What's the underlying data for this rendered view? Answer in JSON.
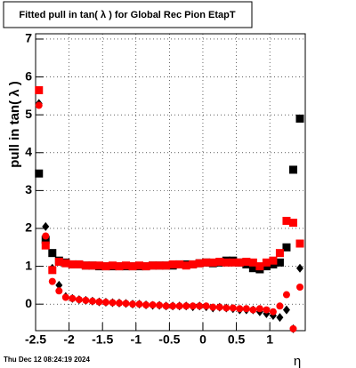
{
  "chart_data": {
    "type": "scatter",
    "title": "Fitted pull in tan( λ ) for Global Rec Pion EtapT",
    "y_label": "pull in tan( λ )",
    "x_label": "η",
    "timestamp": "Thu Dec 12 08:24:19 2024",
    "xlim": [
      -2.5,
      1.53
    ],
    "ylim": [
      -0.7,
      7.14
    ],
    "xticks": [
      -2.5,
      -2,
      -1.5,
      -1,
      -0.5,
      0,
      0.5,
      1
    ],
    "yticks": [
      0,
      1,
      2,
      3,
      4,
      5,
      6,
      7
    ],
    "grid": true,
    "x": [
      -2.45,
      -2.35,
      -2.25,
      -2.15,
      -2.05,
      -1.95,
      -1.85,
      -1.75,
      -1.65,
      -1.55,
      -1.45,
      -1.35,
      -1.25,
      -1.15,
      -1.05,
      -0.95,
      -0.85,
      -0.75,
      -0.65,
      -0.55,
      -0.45,
      -0.35,
      -0.25,
      -0.15,
      -0.05,
      0.05,
      0.15,
      0.25,
      0.35,
      0.45,
      0.55,
      0.65,
      0.75,
      0.85,
      0.95,
      1.05,
      1.15,
      1.25,
      1.35,
      1.45
    ],
    "series": [
      {
        "color": "#000000",
        "marker": "square",
        "values": [
          3.45,
          1.7,
          1.35,
          1.15,
          1.1,
          1.05,
          1.05,
          1.02,
          1.02,
          1.0,
          1.0,
          1.0,
          1.0,
          1.0,
          1.0,
          1.0,
          1.0,
          1.02,
          1.02,
          1.02,
          1.02,
          1.05,
          1.05,
          1.05,
          1.08,
          1.1,
          1.08,
          1.1,
          1.15,
          1.15,
          1.1,
          1.05,
          0.95,
          0.92,
          1.0,
          1.05,
          1.1,
          1.5,
          3.55,
          4.9
        ]
      },
      {
        "color": "#000000",
        "marker": "diamond",
        "values": [
          5.3,
          2.05,
          0.95,
          0.5,
          0.2,
          0.15,
          0.12,
          0.1,
          0.08,
          0.06,
          0.05,
          0.04,
          0.03,
          0.02,
          0.0,
          0.0,
          -0.02,
          -0.03,
          -0.03,
          -0.05,
          -0.05,
          -0.05,
          -0.05,
          -0.07,
          -0.05,
          -0.07,
          -0.1,
          -0.08,
          -0.1,
          -0.12,
          -0.15,
          -0.15,
          -0.15,
          -0.2,
          -0.25,
          -0.3,
          -0.35,
          -0.15,
          -0.65,
          0.95
        ]
      },
      {
        "color": "#ff0000",
        "marker": "square",
        "values": [
          5.65,
          1.55,
          0.9,
          1.12,
          1.08,
          1.05,
          1.05,
          1.02,
          1.02,
          1.02,
          1.0,
          1.02,
          1.0,
          1.02,
          1.0,
          1.02,
          1.0,
          1.02,
          1.02,
          1.02,
          1.05,
          1.05,
          1.02,
          1.05,
          1.08,
          1.1,
          1.1,
          1.12,
          1.1,
          1.1,
          1.1,
          1.12,
          1.1,
          1.0,
          1.1,
          1.15,
          1.35,
          2.2,
          2.15,
          1.6
        ]
      },
      {
        "color": "#ff0000",
        "marker": "circle",
        "values": [
          5.25,
          1.8,
          0.6,
          0.35,
          0.18,
          0.15,
          0.12,
          0.1,
          0.08,
          0.06,
          0.05,
          0.04,
          0.03,
          0.02,
          0.0,
          0.0,
          -0.02,
          -0.02,
          -0.03,
          -0.05,
          -0.05,
          -0.05,
          -0.05,
          -0.05,
          -0.05,
          -0.05,
          -0.08,
          -0.08,
          -0.1,
          -0.1,
          -0.12,
          -0.12,
          -0.15,
          -0.12,
          -0.15,
          -0.2,
          -0.05,
          0.25,
          -0.65,
          0.45
        ]
      }
    ]
  }
}
